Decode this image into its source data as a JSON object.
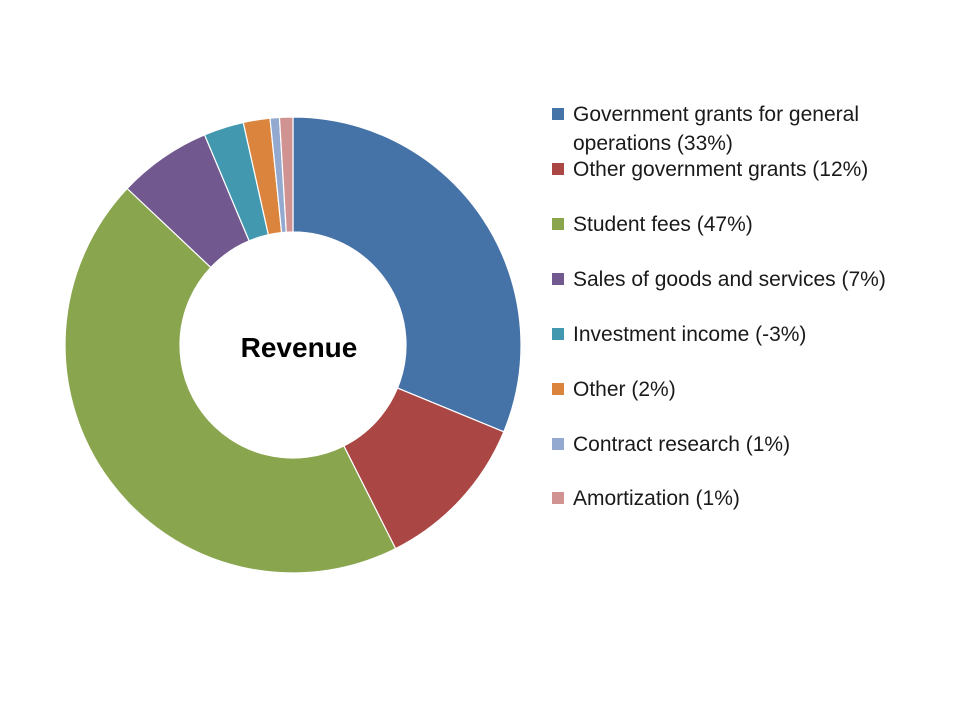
{
  "chart_data": {
    "type": "pie",
    "variant": "donut",
    "title": "Revenue",
    "slices": [
      {
        "label": "Government grants for general operations (33%)",
        "value": 33,
        "color": "#4572A7"
      },
      {
        "label": "Other government grants (12%)",
        "value": 12,
        "color": "#AA4643"
      },
      {
        "label": "Student fees (47%)",
        "value": 47,
        "color": "#89A54E"
      },
      {
        "label": "Sales of goods and services (7%)",
        "value": 7,
        "color": "#71588F"
      },
      {
        "label": "Investment income (-3%)",
        "value": 3,
        "displayed_value": -3,
        "color": "#4198AF"
      },
      {
        "label": "Other (2%)",
        "value": 2,
        "color": "#DB843D"
      },
      {
        "label": "Contract research (1%)",
        "value": 0.7,
        "displayed_value": 1,
        "color": "#93A9CF"
      },
      {
        "label": "Amortization (1%)",
        "value": 1,
        "color": "#D19392"
      }
    ],
    "legend_position": "right",
    "start_angle": "top",
    "direction": "clockwise"
  }
}
